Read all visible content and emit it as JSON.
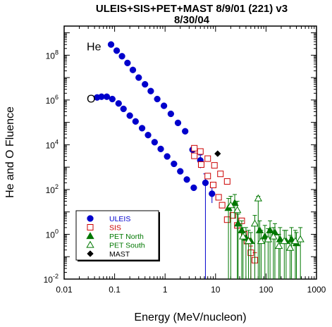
{
  "chart_data": {
    "type": "scatter",
    "title_line1": "ULEIS+SIS+PET+MAST 8/9/01 (221) v3",
    "title_line2": "8/30/04",
    "xlabel": "Energy (MeV/nucleon)",
    "ylabel": "He and O Fluence",
    "x_scale": "log",
    "y_scale": "log",
    "xlim": [
      0.01,
      1000
    ],
    "ylim": [
      0.01,
      2000000000
    ],
    "x_ticks": [
      {
        "value": 0.01,
        "label": "0.01"
      },
      {
        "value": 0.1,
        "label": "0.1"
      },
      {
        "value": 1,
        "label": "1"
      },
      {
        "value": 10,
        "label": "10"
      },
      {
        "value": 100,
        "label": "100"
      },
      {
        "value": 1000,
        "label": "1000"
      }
    ],
    "y_ticks": [
      {
        "value": 0.01,
        "base": "10",
        "exp": "-2"
      },
      {
        "value": 1,
        "base": "10",
        "exp": "0"
      },
      {
        "value": 100,
        "base": "10",
        "exp": "2"
      },
      {
        "value": 10000,
        "base": "10",
        "exp": "4"
      },
      {
        "value": 1000000,
        "base": "10",
        "exp": "6"
      },
      {
        "value": 100000000,
        "base": "10",
        "exp": "8"
      }
    ],
    "annotations": [
      {
        "text": "He",
        "x": 0.028,
        "y": 250000000
      },
      {
        "text": "O",
        "x": 0.028,
        "y": 1200000
      }
    ],
    "legend": {
      "placement": "bottom-left"
    },
    "series": [
      {
        "name": "ULEIS",
        "marker": "circle-filled",
        "color": "#0000cc",
        "points": [
          {
            "x": 0.085,
            "y": 300000000
          },
          {
            "x": 0.11,
            "y": 160000000
          },
          {
            "x": 0.14,
            "y": 90000000
          },
          {
            "x": 0.18,
            "y": 45000000
          },
          {
            "x": 0.23,
            "y": 22000000
          },
          {
            "x": 0.3,
            "y": 10000000
          },
          {
            "x": 0.4,
            "y": 5000000
          },
          {
            "x": 0.52,
            "y": 2500000
          },
          {
            "x": 0.7,
            "y": 1100000
          },
          {
            "x": 0.95,
            "y": 550000
          },
          {
            "x": 1.3,
            "y": 240000
          },
          {
            "x": 1.8,
            "y": 95000
          },
          {
            "x": 2.5,
            "y": 40000
          },
          {
            "x": 3.5,
            "y": 6000
          },
          {
            "x": 5.0,
            "y": 2000,
            "ylo": 900,
            "yhi": 3500
          },
          {
            "x": 0.045,
            "y": 1300000
          },
          {
            "x": 0.055,
            "y": 1400000
          },
          {
            "x": 0.07,
            "y": 1400000
          },
          {
            "x": 0.09,
            "y": 1100000
          },
          {
            "x": 0.12,
            "y": 700000
          },
          {
            "x": 0.15,
            "y": 400000
          },
          {
            "x": 0.2,
            "y": 200000
          },
          {
            "x": 0.26,
            "y": 110000
          },
          {
            "x": 0.35,
            "y": 55000
          },
          {
            "x": 0.46,
            "y": 27000
          },
          {
            "x": 0.62,
            "y": 13000
          },
          {
            "x": 0.82,
            "y": 6500
          },
          {
            "x": 1.1,
            "y": 3000
          },
          {
            "x": 1.5,
            "y": 1400
          },
          {
            "x": 2.0,
            "y": 650
          },
          {
            "x": 2.7,
            "y": 280
          },
          {
            "x": 3.7,
            "y": 120
          },
          {
            "x": 6.3,
            "y": 200,
            "ylo": 0.01,
            "yhi": 500
          },
          {
            "x": 8.5,
            "y": 65,
            "ylo": 25,
            "yhi": 130
          }
        ]
      },
      {
        "name": "SIS",
        "marker": "square-open",
        "color": "#cc0000",
        "points": [
          {
            "x": 3.8,
            "y": 7000
          },
          {
            "x": 5.0,
            "y": 5000
          },
          {
            "x": 7.0,
            "y": 2400
          },
          {
            "x": 9.5,
            "y": 1200
          },
          {
            "x": 12.5,
            "y": 500
          },
          {
            "x": 17,
            "y": 230
          },
          {
            "x": 3.8,
            "y": 3200
          },
          {
            "x": 5.2,
            "y": 1300
          },
          {
            "x": 7.0,
            "y": 400
          },
          {
            "x": 9.0,
            "y": 160
          },
          {
            "x": 11.5,
            "y": 45
          },
          {
            "x": 13.5,
            "y": 20
          },
          {
            "x": 17,
            "y": 4.5
          },
          {
            "x": 22,
            "y": 7
          },
          {
            "x": 27,
            "y": 2.5
          },
          {
            "x": 33,
            "y": 4
          },
          {
            "x": 37,
            "y": 1
          },
          {
            "x": 42,
            "y": 0.5
          },
          {
            "x": 50,
            "y": 0.15,
            "ylo": 0.01,
            "yhi": 0.3
          },
          {
            "x": 60,
            "y": 0.07,
            "ylo": 0.01,
            "yhi": 0.15
          }
        ]
      },
      {
        "name": "PET North",
        "marker": "triangle-filled",
        "color": "#007700",
        "points": [
          {
            "x": 18,
            "y": 15,
            "ylo": 0.01,
            "yhi": 40
          },
          {
            "x": 24,
            "y": 25,
            "ylo": 5,
            "yhi": 60
          },
          {
            "x": 28,
            "y": 3,
            "ylo": 0.01,
            "yhi": 8
          },
          {
            "x": 33,
            "y": 1.5,
            "ylo": 0.01,
            "yhi": 4
          },
          {
            "x": 40,
            "y": 0.7,
            "ylo": 0.01,
            "yhi": 2
          },
          {
            "x": 50,
            "y": 0.5,
            "ylo": 0.01,
            "yhi": 1.2
          },
          {
            "x": 75,
            "y": 1.5,
            "ylo": 0.01,
            "yhi": 4
          },
          {
            "x": 95,
            "y": 0.8,
            "ylo": 0.01,
            "yhi": 2.5
          },
          {
            "x": 120,
            "y": 1.5,
            "ylo": 0.01,
            "yhi": 4
          },
          {
            "x": 150,
            "y": 1.2,
            "ylo": 0.01,
            "yhi": 3
          },
          {
            "x": 190,
            "y": 0.6,
            "ylo": 0.01,
            "yhi": 2
          },
          {
            "x": 250,
            "y": 0.5,
            "ylo": 0.01,
            "yhi": 1.5
          },
          {
            "x": 320,
            "y": 0.6,
            "ylo": 0.01,
            "yhi": 2
          },
          {
            "x": 400,
            "y": 0.4,
            "ylo": 0.01,
            "yhi": 1.2
          }
        ]
      },
      {
        "name": "PET South",
        "marker": "triangle-open",
        "color": "#007700",
        "points": [
          {
            "x": 20,
            "y": 20,
            "ylo": 0.01,
            "yhi": 50
          },
          {
            "x": 27,
            "y": 12,
            "ylo": 0.01,
            "yhi": 30
          },
          {
            "x": 35,
            "y": 0.8,
            "ylo": 0.01,
            "yhi": 2
          },
          {
            "x": 45,
            "y": 0.5,
            "ylo": 0.01,
            "yhi": 1.5
          },
          {
            "x": 60,
            "y": 3,
            "ylo": 0.01,
            "yhi": 7
          },
          {
            "x": 70,
            "y": 40,
            "ylo": 0.01,
            "yhi": 50
          },
          {
            "x": 80,
            "y": 0.5,
            "ylo": 0.01,
            "yhi": 1.5
          },
          {
            "x": 110,
            "y": 0.6,
            "ylo": 0.01,
            "yhi": 1.8
          },
          {
            "x": 140,
            "y": 0.8,
            "ylo": 0.01,
            "yhi": 2
          },
          {
            "x": 180,
            "y": 0.3,
            "ylo": 0.01,
            "yhi": 1
          },
          {
            "x": 230,
            "y": 0.5,
            "ylo": 0.01,
            "yhi": 1.5
          },
          {
            "x": 300,
            "y": 0.25,
            "ylo": 0.01,
            "yhi": 0.9
          },
          {
            "x": 380,
            "y": 0.5,
            "ylo": 0.01,
            "yhi": 1.5
          },
          {
            "x": 480,
            "y": 0.6,
            "ylo": 0.01,
            "yhi": 2
          }
        ]
      },
      {
        "name": "MAST",
        "marker": "diamond-filled",
        "color": "#000000",
        "points": [
          {
            "x": 11,
            "y": 4000
          }
        ]
      }
    ]
  }
}
